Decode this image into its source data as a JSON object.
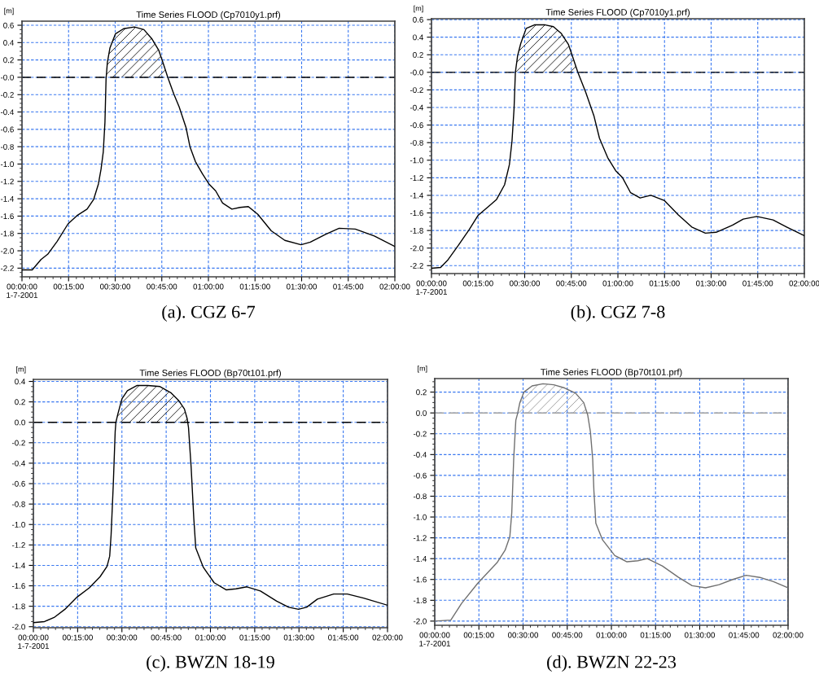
{
  "chart_data": [
    {
      "type": "line",
      "title": "Time Series FLOOD (Cp7010y1.prf)",
      "ylabel": "[m]",
      "annotations": [
        "(a). CGZ 6-7"
      ],
      "xlim": [
        0,
        2
      ],
      "ylim": [
        -2.3,
        0.647
      ],
      "xticks": [
        {
          "value": 0,
          "label": "00:00:00\n1-7-2001"
        },
        {
          "value": 0.25,
          "label": "00:15:00"
        },
        {
          "value": 0.5,
          "label": "00:30:00"
        },
        {
          "value": 0.75,
          "label": "00:45:00"
        },
        {
          "value": 1,
          "label": "01:00:00"
        },
        {
          "value": 1.25,
          "label": "01:15:00"
        },
        {
          "value": 1.5,
          "label": "01:30:00"
        },
        {
          "value": 1.75,
          "label": "01:45:00"
        },
        {
          "value": 2,
          "label": "02:00:00"
        }
      ],
      "yticks": [
        0.6,
        0.4,
        0.2,
        {
          "value": 0,
          "label": "-0.0"
        },
        -0.2,
        -0.4,
        -0.6,
        -0.8,
        {
          "value": -1,
          "label": "-1.0"
        },
        -1.2,
        -1.4,
        -1.6,
        -1.8,
        {
          "value": -2,
          "label": "-2.0"
        },
        -2.2
      ],
      "grid": true,
      "ref_lines": [
        {
          "axis": "y",
          "value": 0,
          "color": "#000000",
          "line_style": "dashed"
        }
      ],
      "series": [
        {
          "type": "area",
          "color": "#000000",
          "x": [
            0.451,
            0.458,
            0.472,
            0.501,
            0.545,
            0.603,
            0.654,
            0.698,
            0.734,
            0.756,
            0.782
          ],
          "values": [
            0.0,
            0.17,
            0.34,
            0.5,
            0.56,
            0.58,
            0.55,
            0.44,
            0.31,
            0.17,
            0.0
          ]
        },
        {
          "color": "#000000",
          "x": [
            0,
            0.055,
            0.102,
            0.138,
            0.189,
            0.247,
            0.298,
            0.349,
            0.384,
            0.41,
            0.424,
            0.436,
            0.445,
            0.451,
            0.458,
            0.472,
            0.501,
            0.545,
            0.603,
            0.654,
            0.698,
            0.734,
            0.756,
            0.782,
            0.814,
            0.843,
            0.88,
            0.901,
            0.93,
            0.967,
            1.003,
            1.039,
            1.076,
            1.126,
            1.17,
            1.214,
            1.265,
            1.337,
            1.41,
            1.497,
            1.547,
            1.628,
            1.701,
            1.788,
            1.89,
            2.0
          ],
          "values": [
            -2.22,
            -2.22,
            -2.1,
            -2.04,
            -1.89,
            -1.69,
            -1.59,
            -1.52,
            -1.41,
            -1.23,
            -1.06,
            -0.86,
            -0.52,
            -0.02,
            0.17,
            0.34,
            0.5,
            0.56,
            0.58,
            0.55,
            0.44,
            0.31,
            0.17,
            0.0,
            -0.19,
            -0.34,
            -0.58,
            -0.8,
            -0.97,
            -1.11,
            -1.23,
            -1.31,
            -1.45,
            -1.52,
            -1.5,
            -1.49,
            -1.58,
            -1.77,
            -1.88,
            -1.93,
            -1.9,
            -1.81,
            -1.74,
            -1.75,
            -1.83,
            -1.95
          ]
        }
      ]
    },
    {
      "type": "line",
      "title": "Time Series FLOOD (Cp7010y1.prf)",
      "ylabel": "[m]",
      "annotations": [
        "(b). CGZ 7-8"
      ],
      "xlim": [
        0,
        2
      ],
      "ylim": [
        -2.29,
        0.61
      ],
      "xticks": [
        {
          "value": 0,
          "label": "00:00:00\n1-7-2001"
        },
        {
          "value": 0.25,
          "label": "00:15:00"
        },
        {
          "value": 0.5,
          "label": "00:30:00"
        },
        {
          "value": 0.75,
          "label": "00:45:00"
        },
        {
          "value": 1,
          "label": "01:00:00"
        },
        {
          "value": 1.25,
          "label": "01:15:00"
        },
        {
          "value": 1.5,
          "label": "01:30:00"
        },
        {
          "value": 1.75,
          "label": "01:45:00"
        },
        {
          "value": 2,
          "label": "02:00:00"
        }
      ],
      "yticks": [
        0.6,
        0.4,
        0.2,
        {
          "value": 0,
          "label": "-0.0"
        },
        -0.2,
        -0.4,
        -0.6,
        -0.8,
        {
          "value": -1,
          "label": "-1.0"
        },
        -1.2,
        -1.4,
        -1.6,
        -1.8,
        {
          "value": -2,
          "label": "-2.0"
        },
        -2.2
      ],
      "grid": true,
      "ref_lines": [
        {
          "axis": "y",
          "value": 0,
          "color": "#000000",
          "line_style": "dashed"
        }
      ],
      "series": [
        {
          "type": "area",
          "color": "#000000",
          "x": [
            0.45,
            0.462,
            0.479,
            0.508,
            0.552,
            0.61,
            0.654,
            0.697,
            0.734,
            0.755,
            0.785
          ],
          "values": [
            0.0,
            0.19,
            0.33,
            0.5,
            0.54,
            0.54,
            0.52,
            0.44,
            0.32,
            0.19,
            0.0
          ]
        },
        {
          "color": "#000000",
          "x": [
            0,
            0.049,
            0.086,
            0.144,
            0.202,
            0.249,
            0.304,
            0.348,
            0.392,
            0.418,
            0.432,
            0.443,
            0.45,
            0.462,
            0.479,
            0.508,
            0.552,
            0.61,
            0.654,
            0.697,
            0.734,
            0.755,
            0.785,
            0.828,
            0.872,
            0.901,
            0.945,
            0.988,
            1.025,
            1.068,
            1.119,
            1.177,
            1.25,
            1.323,
            1.396,
            1.469,
            1.527,
            1.614,
            1.672,
            1.745,
            1.832,
            1.905,
            2.0
          ],
          "values": [
            -2.23,
            -2.22,
            -2.14,
            -1.97,
            -1.79,
            -1.63,
            -1.53,
            -1.45,
            -1.28,
            -1.05,
            -0.78,
            -0.41,
            0.0,
            0.19,
            0.33,
            0.5,
            0.54,
            0.54,
            0.52,
            0.44,
            0.32,
            0.19,
            0.0,
            -0.23,
            -0.5,
            -0.75,
            -0.97,
            -1.12,
            -1.2,
            -1.37,
            -1.43,
            -1.4,
            -1.46,
            -1.62,
            -1.76,
            -1.83,
            -1.82,
            -1.74,
            -1.67,
            -1.64,
            -1.68,
            -1.76,
            -1.86
          ]
        }
      ]
    },
    {
      "type": "line",
      "title": "Time Series FLOOD (Bp70t101.prf)",
      "ylabel": "[m]",
      "annotations": [
        "(c). BWZN 18-19"
      ],
      "xlim": [
        0,
        2
      ],
      "ylim": [
        -2.01,
        0.42
      ],
      "xticks": [
        {
          "value": 0,
          "label": "00:00:00\n1-7-2001"
        },
        {
          "value": 0.25,
          "label": "00:15:00"
        },
        {
          "value": 0.5,
          "label": "00:30:00"
        },
        {
          "value": 0.75,
          "label": "00:45:00"
        },
        {
          "value": 1,
          "label": "01:00:00"
        },
        {
          "value": 1.25,
          "label": "01:15:00"
        },
        {
          "value": 1.5,
          "label": "01:30:00"
        },
        {
          "value": 1.75,
          "label": "01:45:00"
        },
        {
          "value": 2,
          "label": "02:00:00"
        }
      ],
      "yticks": [
        0.4,
        0.2,
        {
          "value": 0,
          "label": "0.0"
        },
        -0.2,
        -0.4,
        -0.6,
        -0.8,
        {
          "value": -1,
          "label": "-1.0"
        },
        -1.2,
        -1.4,
        -1.6,
        -1.8,
        {
          "value": -2,
          "label": "-2.0"
        }
      ],
      "grid": true,
      "ref_lines": [
        {
          "axis": "y",
          "value": 0,
          "color": "#000000",
          "line_style": "dashed"
        }
      ],
      "series": [
        {
          "type": "area",
          "color": "#000000",
          "x": [
            0.466,
            0.477,
            0.5,
            0.531,
            0.584,
            0.646,
            0.715,
            0.776,
            0.822,
            0.853,
            0.868,
            0.872
          ],
          "values": [
            0.0,
            0.08,
            0.23,
            0.31,
            0.36,
            0.36,
            0.35,
            0.29,
            0.21,
            0.13,
            0.04,
            0.0
          ]
        },
        {
          "color": "#000000",
          "x": [
            0,
            0.063,
            0.117,
            0.178,
            0.247,
            0.316,
            0.377,
            0.416,
            0.431,
            0.439,
            0.451,
            0.462,
            0.466,
            0.477,
            0.5,
            0.531,
            0.584,
            0.646,
            0.715,
            0.776,
            0.822,
            0.853,
            0.868,
            0.876,
            0.891,
            0.906,
            0.917,
            0.96,
            1.021,
            1.09,
            1.144,
            1.206,
            1.282,
            1.374,
            1.442,
            1.497,
            1.543,
            1.604,
            1.696,
            1.773,
            1.865,
            2.0
          ],
          "values": [
            -1.96,
            -1.95,
            -1.91,
            -1.83,
            -1.71,
            -1.62,
            -1.51,
            -1.41,
            -1.31,
            -1.1,
            -0.62,
            -0.09,
            0.0,
            0.08,
            0.23,
            0.31,
            0.36,
            0.36,
            0.35,
            0.29,
            0.21,
            0.13,
            0.04,
            -0.05,
            -0.44,
            -0.94,
            -1.23,
            -1.42,
            -1.57,
            -1.64,
            -1.63,
            -1.61,
            -1.65,
            -1.75,
            -1.81,
            -1.83,
            -1.81,
            -1.73,
            -1.68,
            -1.68,
            -1.72,
            -1.79
          ]
        }
      ]
    },
    {
      "type": "line",
      "title": "Time Series FLOOD (Bp70t101.prf)",
      "ylabel": "[m]",
      "annotations": [
        "(d). BWZN 22-23"
      ],
      "xlim": [
        0,
        2
      ],
      "ylim": [
        -2.04,
        0.33
      ],
      "xticks": [
        {
          "value": 0,
          "label": "00:00:00\n1-7-2001"
        },
        {
          "value": 0.25,
          "label": "00:15:00"
        },
        {
          "value": 0.5,
          "label": "00:30:00"
        },
        {
          "value": 0.75,
          "label": "00:45:00"
        },
        {
          "value": 1,
          "label": "01:00:00"
        },
        {
          "value": 1.25,
          "label": "01:15:00"
        },
        {
          "value": 1.5,
          "label": "01:30:00"
        },
        {
          "value": 1.75,
          "label": "01:45:00"
        },
        {
          "value": 2,
          "label": "02:00:00"
        }
      ],
      "yticks": [
        0.2,
        {
          "value": 0,
          "label": "0.0"
        },
        -0.2,
        -0.4,
        -0.6,
        -0.8,
        {
          "value": -1,
          "label": "-1.0"
        },
        -1.2,
        -1.4,
        -1.6,
        -1.8,
        {
          "value": -2,
          "label": "-2.0"
        }
      ],
      "grid": true,
      "ref_lines": [
        {
          "axis": "y",
          "value": 0,
          "color": "#a0a0a0",
          "line_style": "dashed"
        }
      ],
      "series": [
        {
          "type": "area",
          "color": "#909090",
          "x": [
            0.47,
            0.482,
            0.505,
            0.551,
            0.613,
            0.674,
            0.735,
            0.797,
            0.843,
            0.862
          ],
          "values": [
            0.0,
            0.1,
            0.2,
            0.26,
            0.28,
            0.27,
            0.24,
            0.19,
            0.1,
            0.0
          ]
        },
        {
          "color": "#707070",
          "x": [
            0,
            0.091,
            0.152,
            0.244,
            0.352,
            0.398,
            0.425,
            0.436,
            0.447,
            0.459,
            0.47,
            0.482,
            0.505,
            0.551,
            0.613,
            0.674,
            0.735,
            0.797,
            0.843,
            0.866,
            0.881,
            0.894,
            0.901,
            0.912,
            0.95,
            1.019,
            1.088,
            1.15,
            1.203,
            1.288,
            1.38,
            1.457,
            1.533,
            1.61,
            1.687,
            1.763,
            1.84,
            1.917,
            2.0
          ],
          "values": [
            -2.0,
            -1.99,
            -1.83,
            -1.635,
            -1.44,
            -1.32,
            -1.19,
            -0.96,
            -0.44,
            -0.07,
            0.0,
            0.1,
            0.2,
            0.26,
            0.28,
            0.27,
            0.24,
            0.19,
            0.1,
            -0.02,
            -0.18,
            -0.44,
            -0.75,
            -1.06,
            -1.22,
            -1.37,
            -1.43,
            -1.42,
            -1.4,
            -1.47,
            -1.58,
            -1.66,
            -1.68,
            -1.65,
            -1.6,
            -1.56,
            -1.58,
            -1.62,
            -1.68
          ]
        }
      ]
    }
  ]
}
